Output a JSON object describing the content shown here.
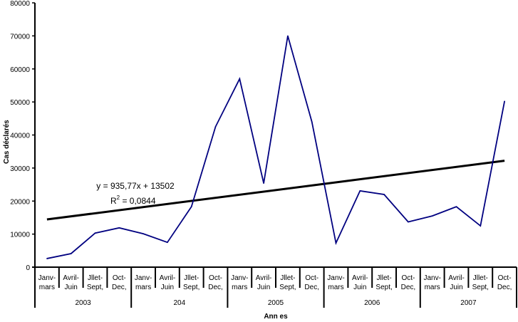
{
  "chart_data": {
    "type": "line",
    "ylabel": "Cas déclarés",
    "xlabel": "Ann es",
    "ylim": [
      0,
      80000
    ],
    "yticks": [
      0,
      10000,
      20000,
      30000,
      40000,
      50000,
      60000,
      70000,
      80000
    ],
    "categories": [
      [
        "Janv-",
        "mars"
      ],
      [
        "Avril-",
        "Juin"
      ],
      [
        "Jllet-",
        "Sept,"
      ],
      [
        "Oct-",
        "Dec,"
      ],
      [
        "Janv-",
        "mars"
      ],
      [
        "Avril-",
        "Juin"
      ],
      [
        "Jllet-",
        "Sept,"
      ],
      [
        "Oct-",
        "Dec,"
      ],
      [
        "Janv-",
        "mars"
      ],
      [
        "Avril-",
        "Juin"
      ],
      [
        "Jllet-",
        "Sept,"
      ],
      [
        "Oct-",
        "Dec,"
      ],
      [
        "Janv-",
        "mars"
      ],
      [
        "Avril-",
        "Juin"
      ],
      [
        "Jllet-",
        "Sept,"
      ],
      [
        "Oct-",
        "Dec,"
      ],
      [
        "Janv-",
        "mars"
      ],
      [
        "Avril-",
        "Juin"
      ],
      [
        "Jllet-",
        "Sept,"
      ],
      [
        "Oct-",
        "Dec,"
      ]
    ],
    "groups": [
      "2003",
      "204",
      "2005",
      "2006",
      "2007"
    ],
    "series": [
      {
        "name": "Cas",
        "color": "#000080",
        "values": [
          2600,
          4100,
          10300,
          11900,
          10100,
          7500,
          18300,
          42500,
          57000,
          25400,
          70000,
          44000,
          7300,
          23100,
          22000,
          13700,
          15500,
          18300,
          12500,
          50200
        ]
      }
    ],
    "trendline": {
      "slope": 935.77,
      "intercept": 13502,
      "equation": "y = 935,77x + 13502",
      "r2_label": "R",
      "r2_sup": "2",
      "r2_value": " = 0,0844",
      "color": "#000000"
    }
  }
}
